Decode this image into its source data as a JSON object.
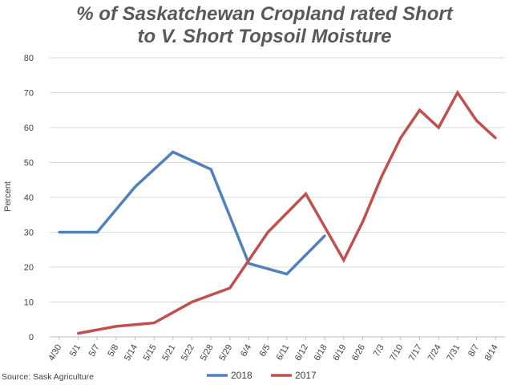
{
  "chart_data": {
    "type": "line",
    "title_lines": [
      "% of Saskatchewan Cropland rated Short",
      "to V. Short Topsoil Moisture"
    ],
    "ylabel": "Percent",
    "xlabel": "",
    "ylim": [
      0,
      80
    ],
    "yticks": [
      0,
      10,
      20,
      30,
      40,
      50,
      60,
      70,
      80
    ],
    "grid": true,
    "legend_position": "bottom",
    "categories": [
      "4/30",
      "5/1",
      "5/7",
      "5/8",
      "5/14",
      "5/15",
      "5/21",
      "5/22",
      "5/28",
      "5/29",
      "6/4",
      "6/5",
      "6/11",
      "6/12",
      "6/18",
      "6/19",
      "6/26",
      "7/3",
      "7/10",
      "7/17",
      "7/24",
      "7/31",
      "8/7",
      "8/14"
    ],
    "series": [
      {
        "name": "2018",
        "color": "#4F81BD",
        "values": [
          30,
          null,
          30,
          null,
          43,
          null,
          53,
          null,
          48,
          null,
          21,
          null,
          18,
          null,
          29,
          null,
          null,
          null,
          null,
          null,
          null,
          null,
          null,
          null
        ]
      },
      {
        "name": "2017",
        "color": "#C0504D",
        "values": [
          null,
          1,
          null,
          3,
          null,
          4,
          null,
          10,
          null,
          14,
          null,
          30,
          null,
          41,
          null,
          22,
          33,
          46,
          57,
          65,
          60,
          70,
          62,
          57
        ]
      }
    ]
  },
  "source": "Source: Sask Agriculture"
}
